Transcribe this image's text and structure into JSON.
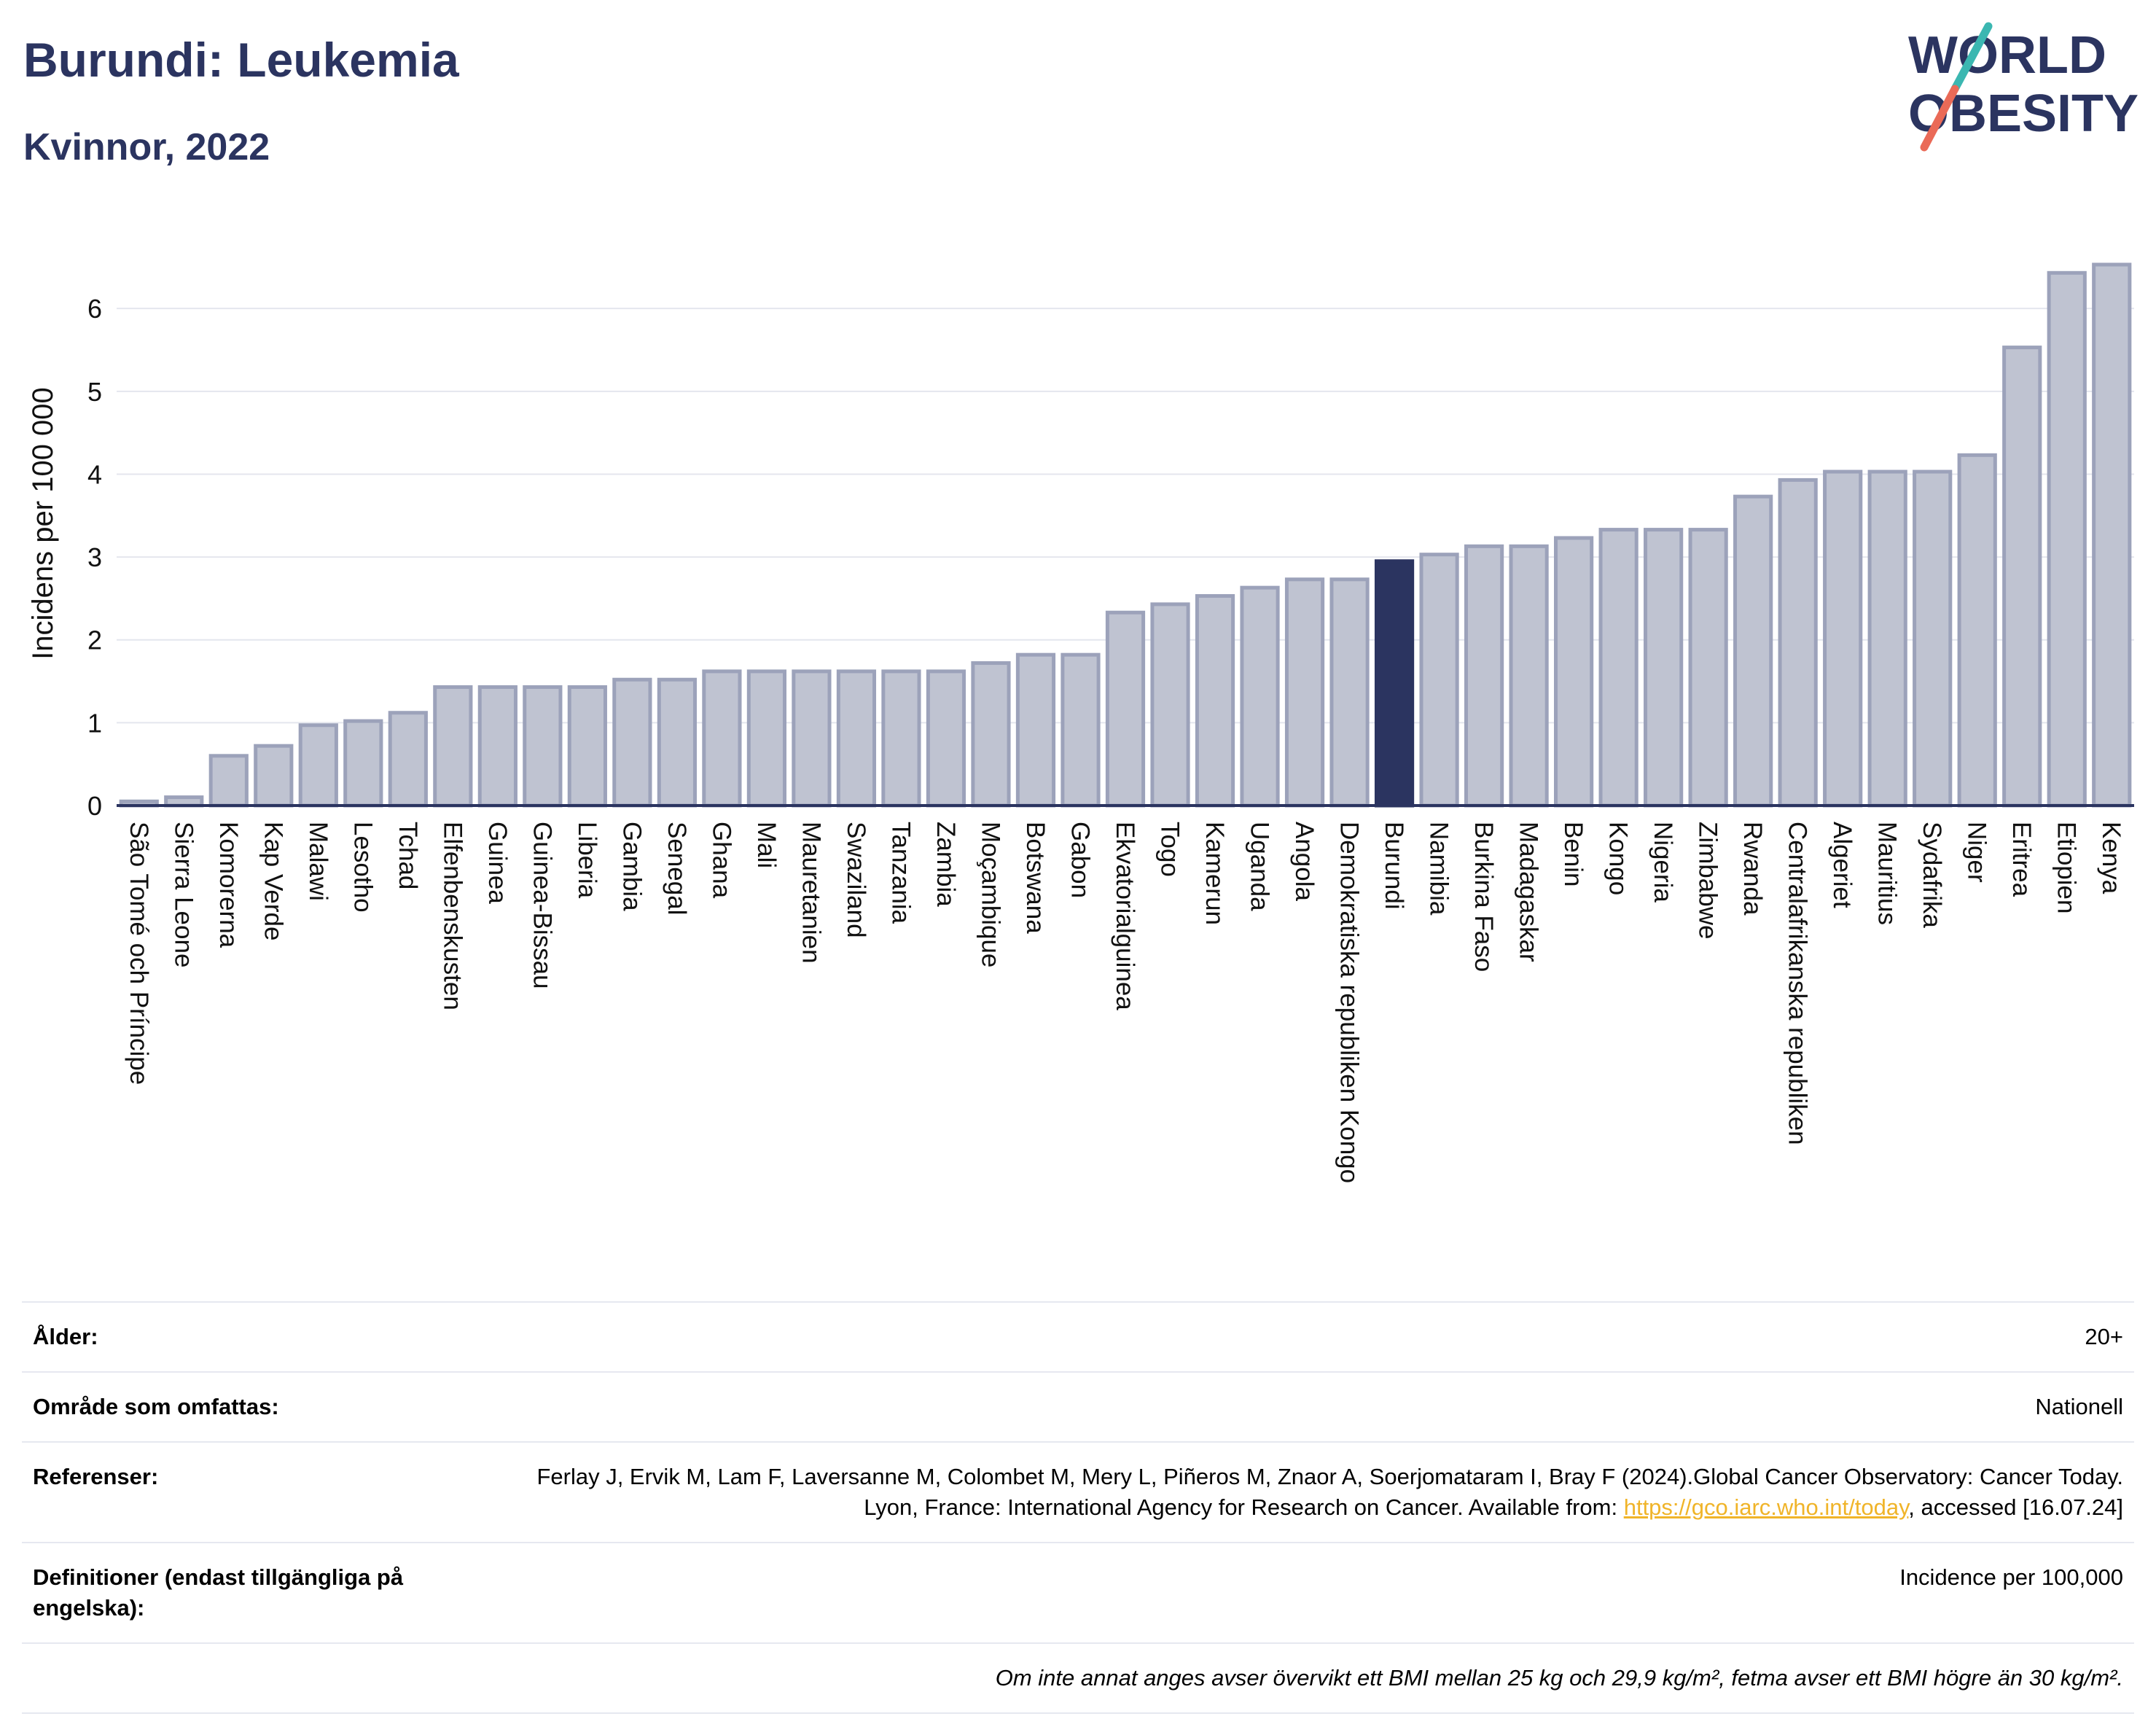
{
  "header": {
    "title": "Burundi: Leukemia",
    "subtitle": "Kvinnor, 2022"
  },
  "logo": {
    "line1": "WORLD",
    "line2": "OBESITY",
    "colors": {
      "text": "#2b3460",
      "slash_top": "#3bb7b1",
      "slash_bottom": "#ea6a57"
    }
  },
  "colors": {
    "bar": "#bfc3d1",
    "bar_border": "#9ca2ba",
    "highlight": "#2b3460",
    "grid": "#e4e6ee",
    "baseline": "#2b3460"
  },
  "chart_data": {
    "type": "bar",
    "ylabel": "Incidens per 100 000",
    "ylim": [
      0,
      6.6
    ],
    "yticks": [
      0,
      1,
      2,
      3,
      4,
      5,
      6
    ],
    "grid": true,
    "highlight": "Burundi",
    "categories": [
      "São Tomé och Príncipe",
      "Sierra Leone",
      "Komorerna",
      "Kap Verde",
      "Malawi",
      "Lesotho",
      "Tchad",
      "Elfenbenskusten",
      "Guinea",
      "Guinea-Bissau",
      "Liberia",
      "Gambia",
      "Senegal",
      "Ghana",
      "Mali",
      "Mauretanien",
      "Swaziland",
      "Tanzania",
      "Zambia",
      "Moçambique",
      "Botswana",
      "Gabon",
      "Ekvatorialguinea",
      "Togo",
      "Kamerun",
      "Uganda",
      "Angola",
      "Demokratiska republiken Kongo",
      "Burundi",
      "Namibia",
      "Burkina Faso",
      "Madagaskar",
      "Benin",
      "Kongo",
      "Nigeria",
      "Zimbabwe",
      "Rwanda",
      "Centralafrikanska republiken",
      "Algeriet",
      "Mauritius",
      "Sydafrika",
      "Niger",
      "Eritrea",
      "Etiopien",
      "Kenya"
    ],
    "values": [
      0.05,
      0.1,
      0.6,
      0.72,
      0.97,
      1.02,
      1.12,
      1.43,
      1.43,
      1.43,
      1.43,
      1.52,
      1.52,
      1.62,
      1.62,
      1.62,
      1.62,
      1.62,
      1.62,
      1.72,
      1.82,
      1.82,
      2.33,
      2.43,
      2.53,
      2.63,
      2.73,
      2.73,
      2.95,
      3.03,
      3.13,
      3.13,
      3.23,
      3.33,
      3.33,
      3.33,
      3.73,
      3.93,
      4.03,
      4.03,
      4.03,
      4.23,
      5.53,
      6.43,
      6.53
    ]
  },
  "info": {
    "rows": [
      {
        "label": "Ålder:",
        "value": "20+"
      },
      {
        "label": "Område som omfattas:",
        "value": "Nationell"
      },
      {
        "label": "Referenser:",
        "value_pre": "Ferlay J, Ervik M, Lam F, Laversanne M, Colombet M, Mery L, Piñeros M, Znaor A, Soerjomataram I, Bray F (2024).Global Cancer Observatory: Cancer Today. Lyon, France: International Agency for Research on Cancer. Available from: ",
        "link": "https://gco.iarc.who.int/today",
        "value_post": ", accessed [16.07.24]"
      },
      {
        "label": "Definitioner (endast tillgängliga på engelska):",
        "value": "Incidence per 100,000"
      }
    ],
    "note": "Om inte annat anges avser övervikt ett BMI mellan 25 kg och 29,9 kg/m², fetma avser ett BMI högre än 30 kg/m²."
  }
}
